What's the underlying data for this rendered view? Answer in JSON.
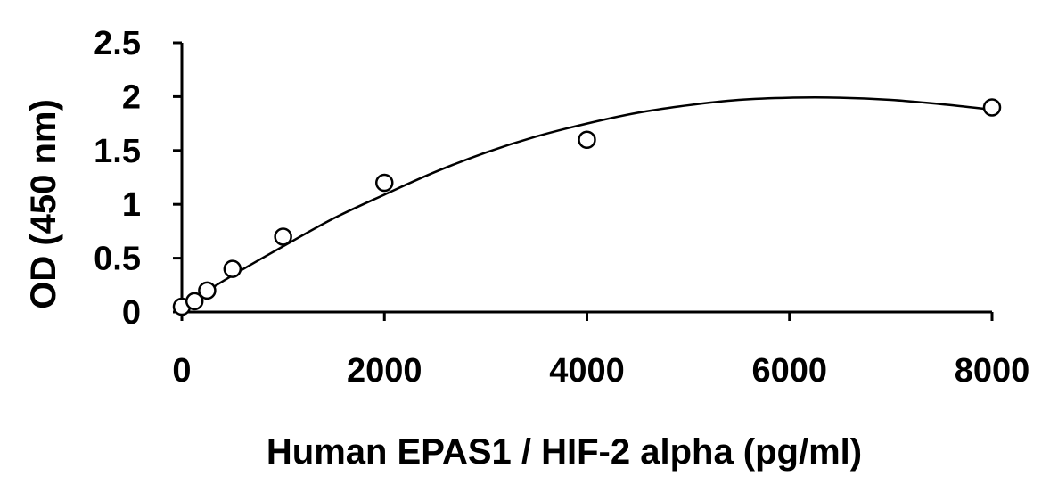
{
  "chart_data": {
    "type": "scatter",
    "title": "",
    "xlabel": "Human EPAS1 / HIF-2 alpha (pg/ml)",
    "ylabel": "OD (450 nm)",
    "xlim": [
      0,
      8000
    ],
    "ylim": [
      0,
      2.5
    ],
    "x_ticks": [
      0,
      2000,
      4000,
      6000,
      8000
    ],
    "x_tick_labels": [
      "0",
      "2000",
      "4000",
      "6000",
      "8000"
    ],
    "y_ticks": [
      0,
      0.5,
      1,
      1.5,
      2,
      2.5
    ],
    "y_tick_labels": [
      "0",
      "0.5",
      "1",
      "1.5",
      "2",
      "2.5"
    ],
    "grid": false,
    "series": [
      {
        "marker": "open-circle",
        "x": [
          0,
          125,
          250,
          500,
          1000,
          2000,
          4000,
          8000
        ],
        "y": [
          0.05,
          0.1,
          0.2,
          0.4,
          0.7,
          1.2,
          1.6,
          1.9
        ]
      }
    ],
    "trendline": {
      "type": "polynomial",
      "x": [
        0,
        500,
        1000,
        1500,
        2000,
        2500,
        3000,
        3500,
        4000,
        4500,
        5000,
        5500,
        6000,
        6500,
        7000,
        7500,
        8000
      ],
      "y": [
        0.05,
        0.34,
        0.61,
        0.87,
        1.09,
        1.3,
        1.48,
        1.63,
        1.75,
        1.85,
        1.92,
        1.97,
        1.99,
        1.99,
        1.97,
        1.93,
        1.88
      ]
    }
  }
}
